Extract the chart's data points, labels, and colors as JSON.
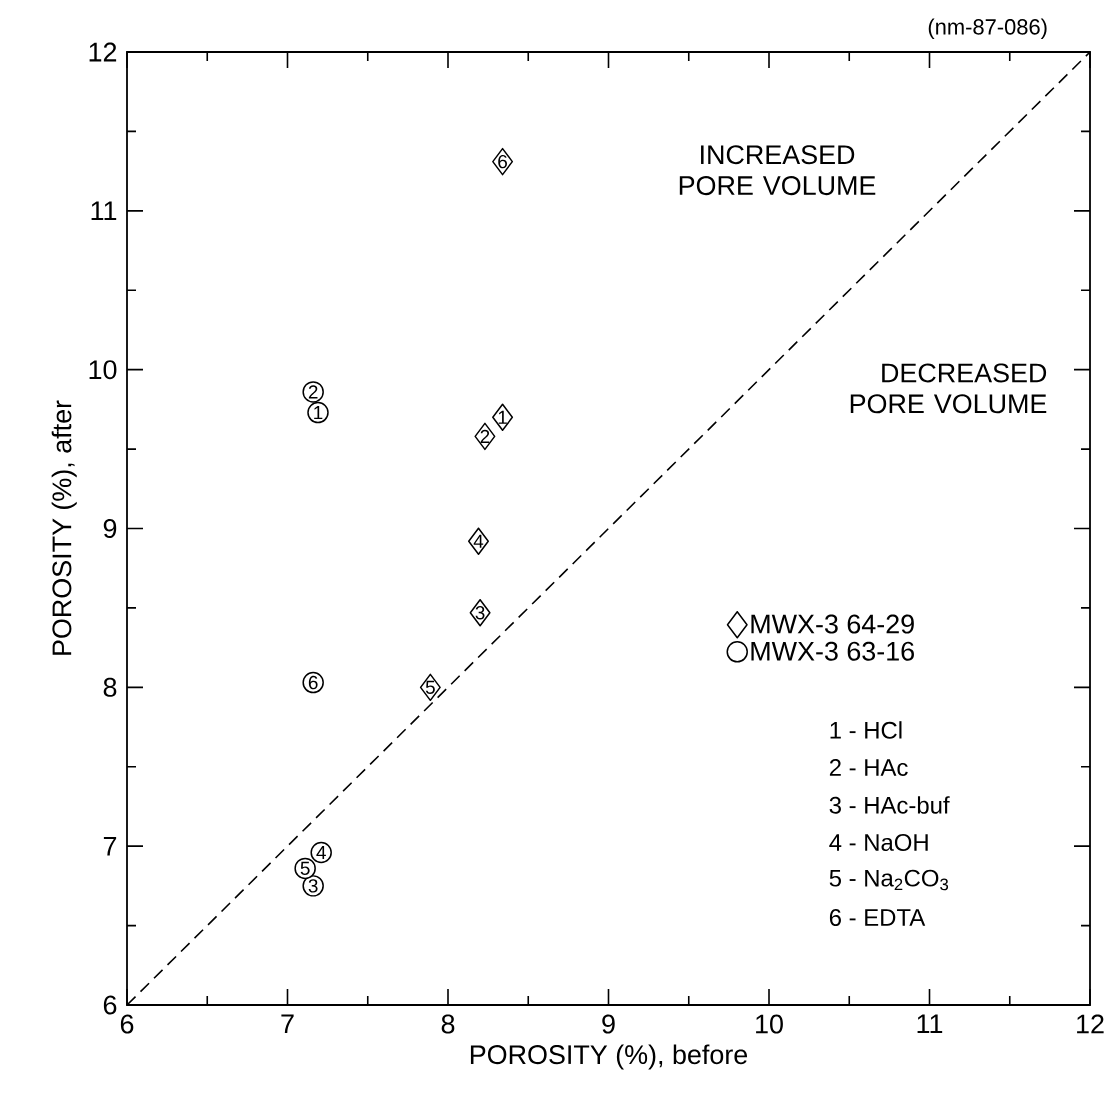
{
  "chart_data": {
    "type": "scatter",
    "xlabel": "POROSITY (%), before",
    "ylabel": "POROSITY (%), after",
    "xlim": [
      6,
      12
    ],
    "ylim": [
      6,
      12
    ],
    "xticks": [
      6,
      7,
      8,
      9,
      10,
      11,
      12
    ],
    "yticks": [
      6,
      7,
      8,
      9,
      10,
      11,
      12
    ],
    "legend": "right",
    "series": [
      {
        "name": "MWX-3 64-29",
        "color": "#000000",
        "marker": "diamond",
        "x": [
          8.34,
          8.23,
          8.2,
          8.19,
          7.89,
          8.34
        ],
        "values": [
          9.7,
          9.58,
          8.47,
          8.92,
          8.0,
          11.31
        ]
      },
      {
        "name": "MWX-3 63-16",
        "color": "#000000",
        "marker": "circle",
        "x": [
          7.19,
          7.16,
          7.16,
          7.21,
          7.11,
          7.16
        ],
        "values": [
          9.73,
          9.86,
          6.75,
          6.96,
          6.86,
          8.03
        ]
      },
      {
        "type": "line",
        "color": "#000000",
        "line_style": "dashed",
        "marker": "none",
        "x": [
          6,
          12
        ],
        "values": [
          6,
          12
        ]
      }
    ],
    "annotations": [
      "(nm-87-086)",
      "INCREASED PORE VOLUME",
      "DECREASED PORE VOLUME",
      "1 - HCl",
      "2 - HAc",
      "3 - HAc-buf",
      "4 - NaOH",
      "5 - Na$_{2}$CO$_{3}$",
      "6 - EDTA",
      {
        "text": "1",
        "x": 8.34,
        "y": 9.7
      },
      {
        "text": "2",
        "x": 8.23,
        "y": 9.58
      },
      {
        "text": "3",
        "x": 8.2,
        "y": 8.47
      },
      {
        "text": "4",
        "x": 8.19,
        "y": 8.92
      },
      {
        "text": "5",
        "x": 7.89,
        "y": 8.0
      },
      {
        "text": "6",
        "x": 8.34,
        "y": 11.31
      },
      {
        "text": "1",
        "x": 7.19,
        "y": 9.73
      },
      {
        "text": "2",
        "x": 7.16,
        "y": 9.86
      },
      {
        "text": "3",
        "x": 7.16,
        "y": 6.75
      },
      {
        "text": "4",
        "x": 7.21,
        "y": 6.96
      },
      {
        "text": "5",
        "x": 7.11,
        "y": 6.86
      },
      {
        "text": "6",
        "x": 7.16,
        "y": 8.03
      }
    ]
  }
}
